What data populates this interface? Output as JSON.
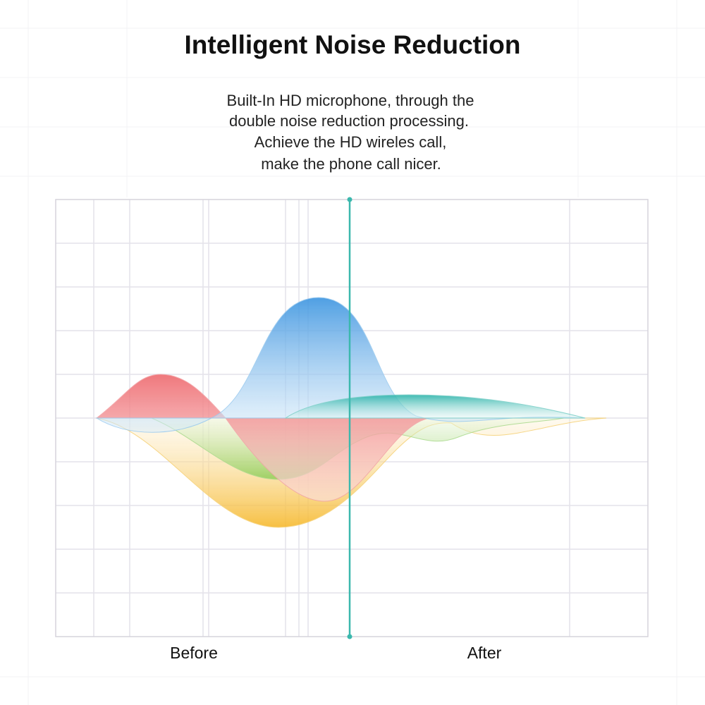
{
  "title": "Intelligent Noise Reduction",
  "description": [
    "Built-In HD microphone, through the",
    "double noise reduction processing.",
    "Achieve the HD wireles call,",
    "make the phone call nicer."
  ],
  "labels": {
    "before": "Before",
    "after": "After"
  }
}
